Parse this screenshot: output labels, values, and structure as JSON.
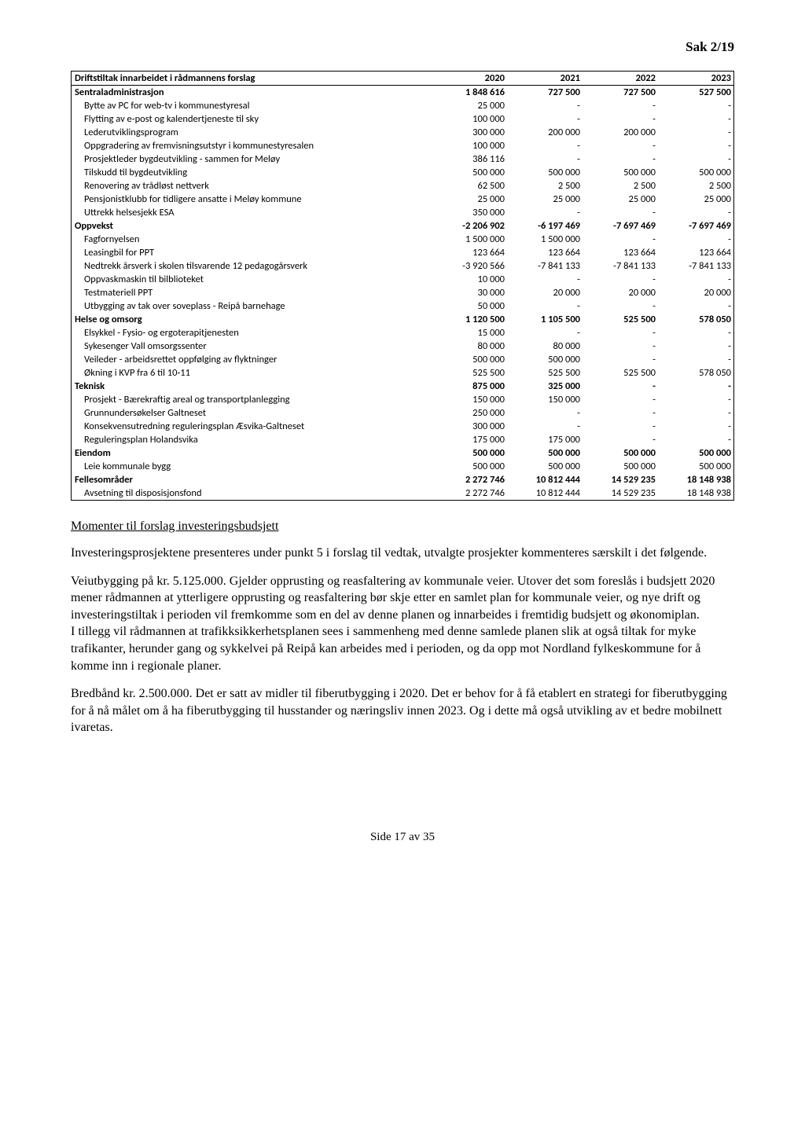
{
  "header": {
    "sak": "Sak 2/19"
  },
  "table": {
    "columns": [
      "Driftstiltak innarbeidet i rådmannens forslag",
      "2020",
      "2021",
      "2022",
      "2023"
    ],
    "rows": [
      {
        "label": "Sentraladministrasjon",
        "indent": 0,
        "bold": true,
        "v": [
          "1 848 616",
          "727 500",
          "727 500",
          "527 500"
        ]
      },
      {
        "label": "Bytte av PC for web-tv i kommunestyresal",
        "indent": 1,
        "bold": false,
        "v": [
          "25 000",
          "-",
          "-",
          "-"
        ]
      },
      {
        "label": "Flytting av e-post og kalendertjeneste til sky",
        "indent": 1,
        "bold": false,
        "v": [
          "100 000",
          "-",
          "-",
          "-"
        ]
      },
      {
        "label": "Lederutviklingsprogram",
        "indent": 1,
        "bold": false,
        "v": [
          "300 000",
          "200 000",
          "200 000",
          "-"
        ]
      },
      {
        "label": "Oppgradering av fremvisningsutstyr i kommunestyresalen",
        "indent": 1,
        "bold": false,
        "v": [
          "100 000",
          "-",
          "-",
          "-"
        ]
      },
      {
        "label": "Prosjektleder bygdeutvikling - sammen for Meløy",
        "indent": 1,
        "bold": false,
        "v": [
          "386 116",
          "-",
          "-",
          "-"
        ]
      },
      {
        "label": "Tilskudd til bygdeutvikling",
        "indent": 1,
        "bold": false,
        "v": [
          "500 000",
          "500 000",
          "500 000",
          "500 000"
        ]
      },
      {
        "label": "Renovering av trådløst nettverk",
        "indent": 1,
        "bold": false,
        "v": [
          "62 500",
          "2 500",
          "2 500",
          "2 500"
        ]
      },
      {
        "label": "Pensjonistklubb for tidligere ansatte i Meløy kommune",
        "indent": 1,
        "bold": false,
        "v": [
          "25 000",
          "25 000",
          "25 000",
          "25 000"
        ]
      },
      {
        "label": "Uttrekk helsesjekk ESA",
        "indent": 1,
        "bold": false,
        "v": [
          "350 000",
          "-",
          "-",
          "-"
        ]
      },
      {
        "label": "Oppvekst",
        "indent": 0,
        "bold": true,
        "v": [
          "-2 206 902",
          "-6 197 469",
          "-7 697 469",
          "-7 697 469"
        ]
      },
      {
        "label": "Fagfornyelsen",
        "indent": 1,
        "bold": false,
        "v": [
          "1 500 000",
          "1 500 000",
          "-",
          "-"
        ]
      },
      {
        "label": "Leasingbil for PPT",
        "indent": 1,
        "bold": false,
        "v": [
          "123 664",
          "123 664",
          "123 664",
          "123 664"
        ]
      },
      {
        "label": "Nedtrekk årsverk i skolen tilsvarende 12 pedagogårsverk",
        "indent": 1,
        "bold": false,
        "v": [
          "-3 920 566",
          "-7 841 133",
          "-7 841 133",
          "-7 841 133"
        ]
      },
      {
        "label": "Oppvaskmaskin til bilblioteket",
        "indent": 1,
        "bold": false,
        "v": [
          "10 000",
          "-",
          "-",
          "-"
        ]
      },
      {
        "label": "Testmateriell PPT",
        "indent": 1,
        "bold": false,
        "v": [
          "30 000",
          "20 000",
          "20 000",
          "20 000"
        ]
      },
      {
        "label": "Utbygging av tak over soveplass - Reipå barnehage",
        "indent": 1,
        "bold": false,
        "v": [
          "50 000",
          "-",
          "-",
          "-"
        ]
      },
      {
        "label": "Helse og omsorg",
        "indent": 0,
        "bold": true,
        "v": [
          "1 120 500",
          "1 105 500",
          "525 500",
          "578 050"
        ]
      },
      {
        "label": "Elsykkel  - Fysio- og ergoterapitjenesten",
        "indent": 1,
        "bold": false,
        "v": [
          "15 000",
          "-",
          "-",
          "-"
        ]
      },
      {
        "label": "Sykesenger Vall omsorgssenter",
        "indent": 1,
        "bold": false,
        "v": [
          "80 000",
          "80 000",
          "-",
          "-"
        ]
      },
      {
        "label": "Veileder - arbeidsrettet oppfølging av flyktninger",
        "indent": 1,
        "bold": false,
        "v": [
          "500 000",
          "500 000",
          "-",
          "-"
        ]
      },
      {
        "label": "Økning i KVP fra 6 til 10-11",
        "indent": 1,
        "bold": false,
        "v": [
          "525 500",
          "525 500",
          "525 500",
          "578 050"
        ]
      },
      {
        "label": "Teknisk",
        "indent": 0,
        "bold": true,
        "v": [
          "875 000",
          "325 000",
          "-",
          "-"
        ]
      },
      {
        "label": "Prosjekt - Bærekraftig areal og transportplanlegging",
        "indent": 1,
        "bold": false,
        "v": [
          "150 000",
          "150 000",
          "-",
          "-"
        ]
      },
      {
        "label": "Grunnundersøkelser Galtneset",
        "indent": 1,
        "bold": false,
        "v": [
          "250 000",
          "-",
          "-",
          "-"
        ]
      },
      {
        "label": "Konsekvensutredning reguleringsplan Æsvika-Galtneset",
        "indent": 1,
        "bold": false,
        "v": [
          "300 000",
          "-",
          "-",
          "-"
        ]
      },
      {
        "label": "Reguleringsplan Holandsvika",
        "indent": 1,
        "bold": false,
        "v": [
          "175 000",
          "175 000",
          "-",
          "-"
        ]
      },
      {
        "label": "Eiendom",
        "indent": 0,
        "bold": true,
        "v": [
          "500 000",
          "500 000",
          "500 000",
          "500 000"
        ]
      },
      {
        "label": "Leie kommunale bygg",
        "indent": 1,
        "bold": false,
        "v": [
          "500 000",
          "500 000",
          "500 000",
          "500 000"
        ]
      },
      {
        "label": "Fellesområder",
        "indent": 0,
        "bold": true,
        "v": [
          "2 272 746",
          "10 812 444",
          "14 529 235",
          "18 148 938"
        ]
      },
      {
        "label": "Avsetning til disposisjonsfond",
        "indent": 1,
        "bold": false,
        "v": [
          "2 272 746",
          "10 812 444",
          "14 529 235",
          "18 148 938"
        ],
        "last": true
      }
    ]
  },
  "body": {
    "heading": "Momenter til forslag investeringsbudsjett",
    "p1": "Investeringsprosjektene presenteres under punkt 5 i forslag til vedtak, utvalgte prosjekter kommenteres særskilt i det følgende.",
    "p2a": "Veiutbygging på kr. 5.125.000. Gjelder opprusting og reasfaltering av kommunale veier. Utover det som foreslås i budsjett 2020 mener rådmannen at ytterligere opprusting og reasfaltering bør skje etter en samlet plan for kommunale veier, og nye drift og investeringstiltak i perioden vil fremkomme som en del av denne planen og innarbeides i fremtidig budsjett og økonomiplan.",
    "p2b": "I tillegg vil rådmannen at trafikksikkerhetsplanen sees i sammenheng med denne samlede planen slik at også tiltak for myke trafikanter, herunder gang og sykkelvei på Reipå kan arbeides med i perioden, og da opp mot Nordland fylkeskommune for å komme inn i regionale planer.",
    "p3": "Bredbånd kr. 2.500.000. Det er satt av midler til fiberutbygging i 2020. Det er behov for å få etablert en strategi for fiberutbygging for å nå målet om å ha fiberutbygging til husstander og næringsliv innen 2023. Og i dette må også utvikling av et bedre mobilnett ivaretas."
  },
  "footer": {
    "text": "Side 17 av 35"
  }
}
